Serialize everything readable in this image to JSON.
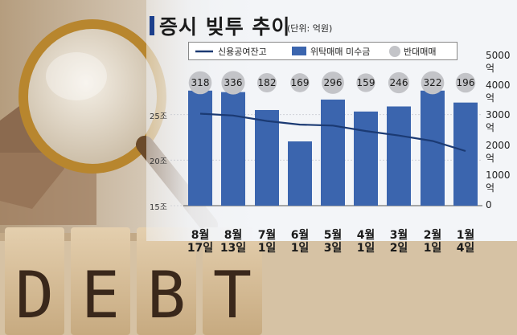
{
  "header": {
    "title": "증시 빚투 추이",
    "unit": "(단위: 억원)"
  },
  "legend": {
    "line": "신용공여잔고",
    "bar": "위탁매매 미수금",
    "circle": "반대매매"
  },
  "photo": {
    "blocks": [
      "D",
      "E",
      "B",
      "T"
    ]
  },
  "chart_data": {
    "type": "bar",
    "categories": [
      [
        "8월",
        "17일"
      ],
      [
        "8월",
        "13일"
      ],
      [
        "7월",
        "1일"
      ],
      [
        "6월",
        "1일"
      ],
      [
        "5월",
        "3일"
      ],
      [
        "4월",
        "1일"
      ],
      [
        "3월",
        "2일"
      ],
      [
        "2월",
        "1일"
      ],
      [
        "1월",
        "4일"
      ]
    ],
    "circle_labels": [
      "318",
      "336",
      "182",
      "169",
      "296",
      "159",
      "246",
      "322",
      "196"
    ],
    "series": [
      {
        "name": "위탁매매 미수금",
        "type": "bar",
        "values": [
          3850,
          3800,
          3200,
          2150,
          3550,
          3150,
          3320,
          3850,
          3450
        ]
      },
      {
        "name": "신용공여잔고",
        "type": "line",
        "values": [
          25.1,
          24.9,
          24.3,
          23.9,
          23.8,
          23.2,
          22.7,
          22.1,
          21.0
        ]
      },
      {
        "name": "반대매매",
        "type": "circle",
        "values": [
          318,
          336,
          182,
          169,
          296,
          159,
          246,
          322,
          196
        ]
      }
    ],
    "y_left": {
      "ticks": [
        "25조",
        "20조",
        "15조"
      ],
      "values": [
        25,
        20,
        15
      ],
      "range": [
        15,
        27
      ]
    },
    "y_right": {
      "ticks": [
        "5000억",
        "4000억",
        "3000억",
        "2000억",
        "1000억",
        "0"
      ],
      "values": [
        5000,
        4000,
        3000,
        2000,
        1000,
        0
      ],
      "range": [
        0,
        5000
      ]
    },
    "colors": {
      "bar": "#3b65ae",
      "line": "#1b3a73",
      "circle": "#c3c4c8",
      "text": "#1b1b1b"
    }
  }
}
